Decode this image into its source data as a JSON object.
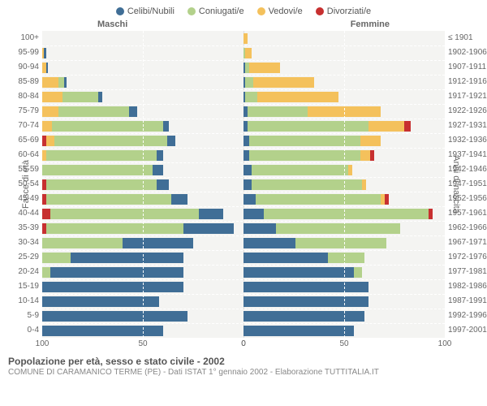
{
  "legend": [
    {
      "label": "Celibi/Nubili",
      "color": "#406e96"
    },
    {
      "label": "Coniugati/e",
      "color": "#b3d18b"
    },
    {
      "label": "Vedovi/e",
      "color": "#f4c15c"
    },
    {
      "label": "Divorziati/e",
      "color": "#c73030"
    }
  ],
  "header_left": "Maschi",
  "header_right": "Femmine",
  "ylabel_left": "Fasce di età",
  "ylabel_right": "Anni di nascita",
  "age_labels": [
    "100+",
    "95-99",
    "90-94",
    "85-89",
    "80-84",
    "75-79",
    "70-74",
    "65-69",
    "60-64",
    "55-59",
    "50-54",
    "45-49",
    "40-44",
    "35-39",
    "30-34",
    "25-29",
    "20-24",
    "15-19",
    "10-14",
    "5-9",
    "0-4"
  ],
  "birth_labels": [
    "≤ 1901",
    "1902-1906",
    "1907-1911",
    "1912-1916",
    "1917-1921",
    "1922-1926",
    "1927-1931",
    "1932-1936",
    "1937-1941",
    "1942-1946",
    "1947-1951",
    "1952-1956",
    "1957-1961",
    "1962-1966",
    "1967-1971",
    "1972-1976",
    "1977-1981",
    "1982-1986",
    "1987-1991",
    "1992-1996",
    "1997-2001"
  ],
  "xmax": 100,
  "xticks_left": [
    100,
    50,
    0
  ],
  "xticks_right": [
    0,
    50,
    100
  ],
  "colors": {
    "bg": "#f4f4f2",
    "grid": "#ffffff"
  },
  "rows": [
    {
      "m": [
        0,
        0,
        0,
        0
      ],
      "f": [
        0,
        0,
        2,
        0
      ]
    },
    {
      "m": [
        1,
        0,
        1,
        0
      ],
      "f": [
        0,
        1,
        3,
        0
      ]
    },
    {
      "m": [
        1,
        0,
        2,
        0
      ],
      "f": [
        1,
        2,
        15,
        0
      ]
    },
    {
      "m": [
        1,
        3,
        8,
        0
      ],
      "f": [
        1,
        4,
        30,
        0
      ]
    },
    {
      "m": [
        2,
        18,
        10,
        0
      ],
      "f": [
        1,
        6,
        40,
        0
      ]
    },
    {
      "m": [
        4,
        35,
        8,
        0
      ],
      "f": [
        2,
        30,
        36,
        0
      ]
    },
    {
      "m": [
        3,
        55,
        5,
        0
      ],
      "f": [
        2,
        60,
        18,
        3
      ]
    },
    {
      "m": [
        4,
        56,
        4,
        2
      ],
      "f": [
        3,
        55,
        10,
        0
      ]
    },
    {
      "m": [
        3,
        55,
        2,
        0
      ],
      "f": [
        3,
        55,
        5,
        2
      ]
    },
    {
      "m": [
        5,
        55,
        0,
        0
      ],
      "f": [
        4,
        48,
        2,
        0
      ]
    },
    {
      "m": [
        6,
        55,
        0,
        2
      ],
      "f": [
        4,
        55,
        2,
        0
      ]
    },
    {
      "m": [
        8,
        62,
        0,
        2
      ],
      "f": [
        6,
        62,
        2,
        2
      ]
    },
    {
      "m": [
        12,
        74,
        0,
        4
      ],
      "f": [
        10,
        82,
        0,
        2
      ]
    },
    {
      "m": [
        25,
        68,
        0,
        2
      ],
      "f": [
        16,
        62,
        0,
        0
      ]
    },
    {
      "m": [
        35,
        40,
        0,
        0
      ],
      "f": [
        26,
        45,
        0,
        0
      ]
    },
    {
      "m": [
        56,
        14,
        0,
        0
      ],
      "f": [
        42,
        18,
        0,
        0
      ]
    },
    {
      "m": [
        66,
        4,
        0,
        0
      ],
      "f": [
        55,
        4,
        0,
        0
      ]
    },
    {
      "m": [
        70,
        0,
        0,
        0
      ],
      "f": [
        62,
        0,
        0,
        0
      ]
    },
    {
      "m": [
        58,
        0,
        0,
        0
      ],
      "f": [
        62,
        0,
        0,
        0
      ]
    },
    {
      "m": [
        72,
        0,
        0,
        0
      ],
      "f": [
        60,
        0,
        0,
        0
      ]
    },
    {
      "m": [
        60,
        0,
        0,
        0
      ],
      "f": [
        55,
        0,
        0,
        0
      ]
    }
  ],
  "footer_title": "Popolazione per età, sesso e stato civile - 2002",
  "footer_sub": "COMUNE DI CARAMANICO TERME (PE) - Dati ISTAT 1° gennaio 2002 - Elaborazione TUTTITALIA.IT"
}
